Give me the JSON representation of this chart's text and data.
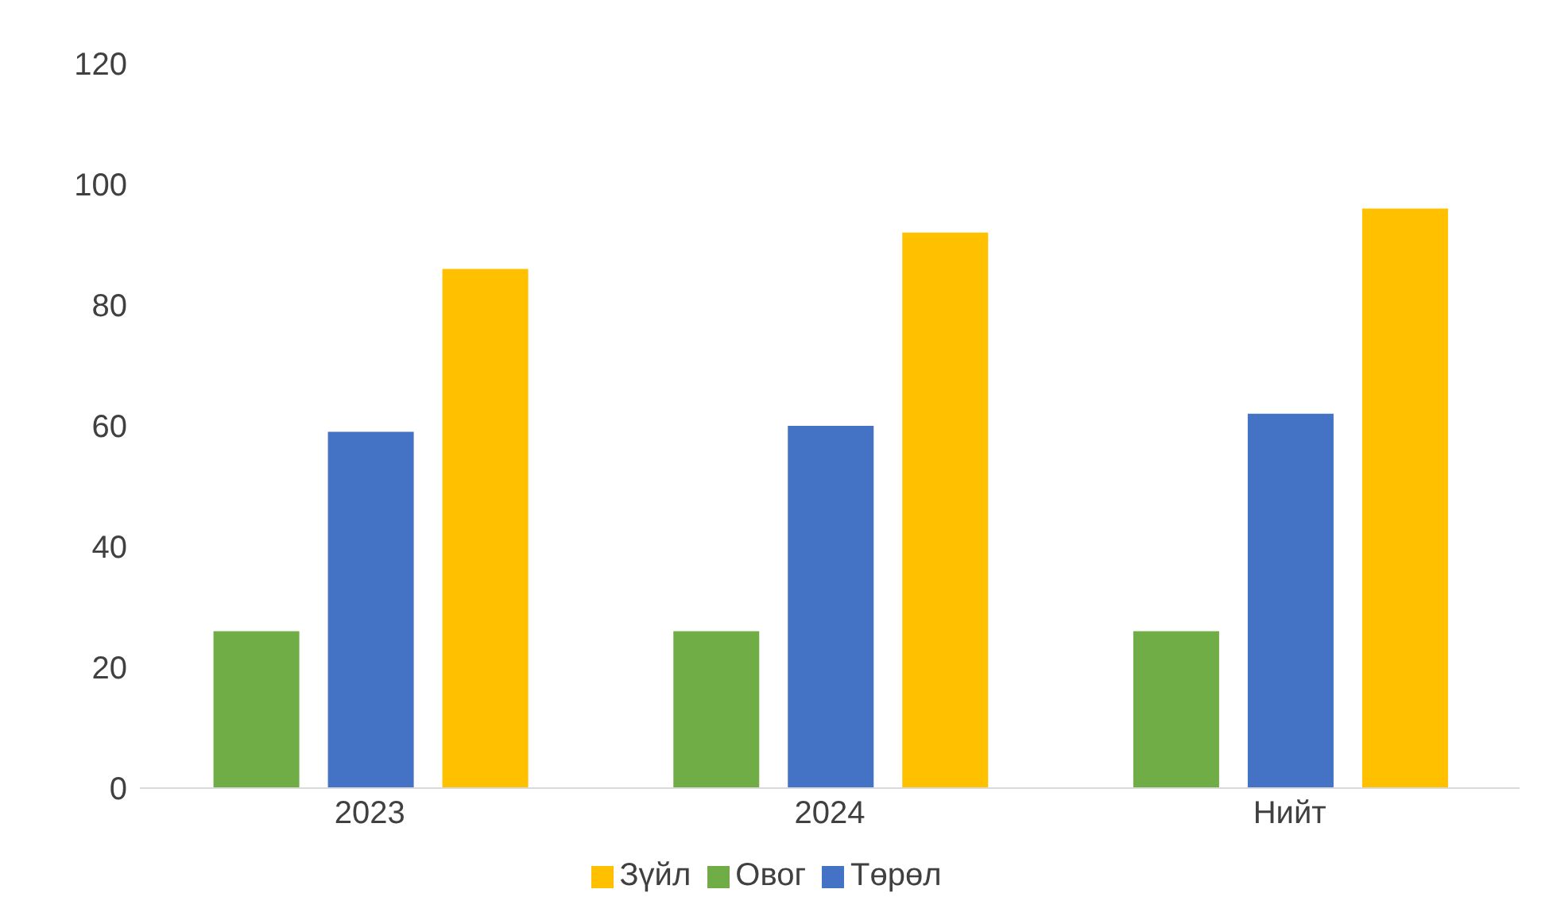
{
  "chart_data": {
    "type": "bar",
    "categories": [
      "2023",
      "2024",
      "Нийт"
    ],
    "series": [
      {
        "name": "Овог",
        "color": "#70ad47",
        "values": [
          26,
          26,
          26
        ]
      },
      {
        "name": "Төрөл",
        "color": "#4472c4",
        "values": [
          59,
          60,
          62
        ]
      },
      {
        "name": "Зүйл",
        "color": "#ffc000",
        "values": [
          86,
          92,
          96
        ]
      }
    ],
    "ylim": [
      0,
      120
    ],
    "yticks": [
      0,
      20,
      40,
      60,
      80,
      100,
      120
    ],
    "grid": false,
    "legend": "bottom"
  }
}
